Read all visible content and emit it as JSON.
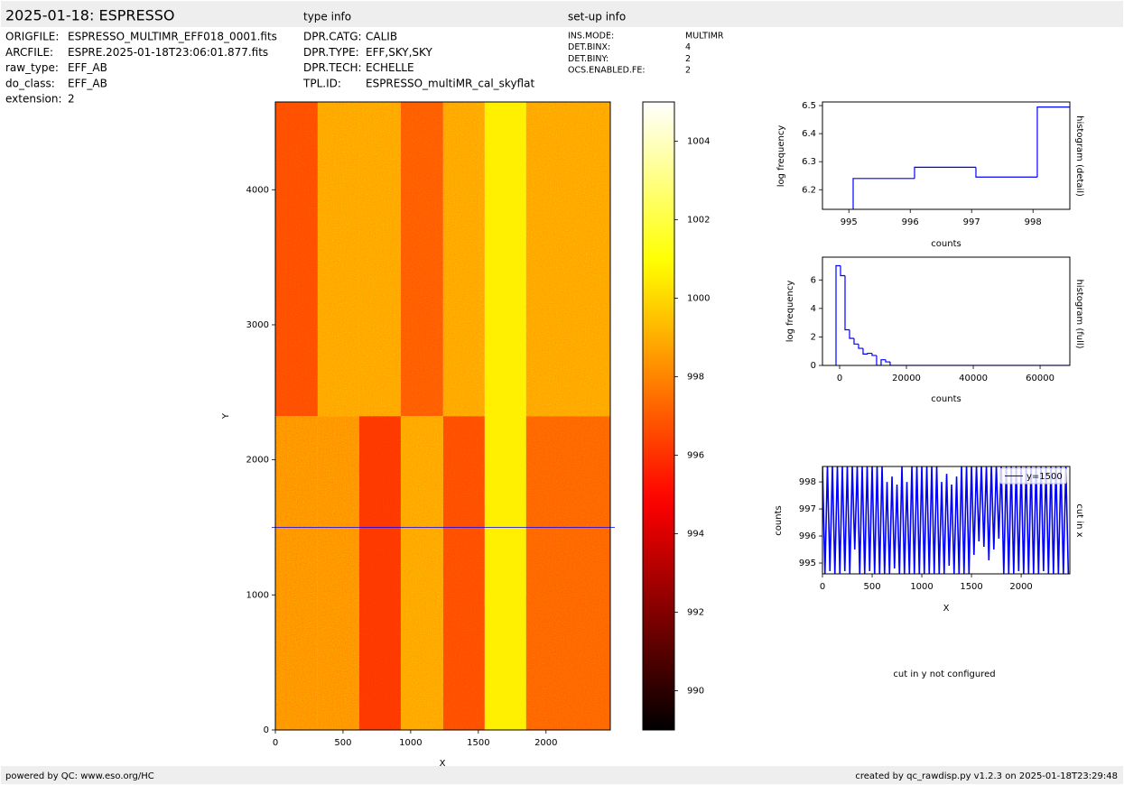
{
  "header": {
    "title": "2025-01-18: ESPRESSO",
    "type_info_title": "type info",
    "setup_info_title": "set-up info"
  },
  "file_info": [
    [
      "ORIGFILE:",
      "ESPRESSO_MULTIMR_EFF018_0001.fits"
    ],
    [
      "ARCFILE:",
      "ESPRE.2025-01-18T23:06:01.877.fits"
    ],
    [
      "raw_type:",
      "EFF_AB"
    ],
    [
      "do_class:",
      "EFF_AB"
    ],
    [
      "extension:",
      "2"
    ]
  ],
  "type_info": [
    [
      "DPR.CATG:",
      "CALIB"
    ],
    [
      "DPR.TYPE:",
      "EFF,SKY,SKY"
    ],
    [
      "DPR.TECH:",
      "ECHELLE"
    ],
    [
      "TPL.ID:",
      "ESPRESSO_multiMR_cal_skyflat"
    ]
  ],
  "setup_info": [
    [
      "INS.MODE:",
      "MULTIMR"
    ],
    [
      "DET.BINX:",
      "4"
    ],
    [
      "DET.BINY:",
      "2"
    ],
    [
      "OCS.ENABLED.FE:",
      "2"
    ]
  ],
  "note": "cut in y not configured",
  "footer": {
    "left": "powered by QC: www.eso.org/HC",
    "right": "created by qc_rawdisp.py v1.2.3 on 2025-01-18T23:29:48"
  },
  "chart_data": [
    {
      "type": "heatmap",
      "colormap": "hot",
      "xlabel": "X",
      "ylabel": "Y",
      "xlim": [
        0,
        2475
      ],
      "ylim": [
        0,
        4650
      ],
      "xticks": [
        0,
        500,
        1000,
        1500,
        2000
      ],
      "yticks": [
        0,
        1000,
        2000,
        3000,
        4000
      ],
      "x_edges": [
        0,
        313,
        620,
        927,
        1240,
        1547,
        1853,
        2475
      ],
      "y_edges": [
        0,
        2324,
        4650
      ],
      "values": [
        [
          998,
          998,
          996,
          998.5,
          996.5,
          1000.5,
          997
        ],
        [
          996.5,
          998.5,
          998.5,
          996.8,
          998.5,
          1000.5,
          998.5
        ]
      ],
      "vlim": [
        989,
        1005
      ],
      "hline": 1500,
      "hline_color": "#0000ff"
    },
    {
      "type": "colorbar",
      "colormap": "hot",
      "ylim": [
        989,
        1005
      ],
      "yticks": [
        990,
        992,
        994,
        996,
        998,
        1000,
        1002,
        1004
      ]
    },
    {
      "type": "histogram",
      "xlabel": "counts",
      "ylabel": "log frequency",
      "side_label": "histogram (detail)",
      "xlim": [
        994.57,
        998.6
      ],
      "ylim": [
        6.13,
        6.513
      ],
      "xticks": [
        995,
        996,
        997,
        998
      ],
      "yticks": [
        6.2,
        6.3,
        6.4,
        6.5
      ],
      "bins": [
        995.07,
        996.07,
        997.07,
        998.07,
        999.07
      ],
      "counts": [
        6.24,
        6.28,
        6.245,
        6.495
      ],
      "color": "#0000ff"
    },
    {
      "type": "histogram",
      "xlabel": "counts",
      "ylabel": "log frequency",
      "side_label": "histogram (full)",
      "xlim": [
        -5135,
        68900
      ],
      "ylim": [
        0,
        7.6
      ],
      "xticks": [
        0,
        20000,
        40000,
        60000
      ],
      "yticks": [
        0,
        2,
        4,
        6
      ],
      "bins": [
        -1080,
        270,
        1620,
        2970,
        4320,
        5670,
        7020,
        8370,
        9720,
        11070,
        12420,
        13770,
        15120
      ],
      "counts": [
        7.0,
        6.3,
        2.5,
        1.9,
        1.5,
        1.2,
        0.8,
        0.85,
        0.7,
        0,
        0.4,
        0.25
      ],
      "color": "#0000ff"
    },
    {
      "type": "line",
      "xlabel": "X",
      "ylabel": "counts",
      "side_label": "cut in x",
      "legend": "upper right",
      "xlim": [
        0,
        2490
      ],
      "ylim": [
        994.6,
        998.57
      ],
      "xticks": [
        0,
        500,
        1000,
        1500,
        2000
      ],
      "yticks": [
        995,
        996,
        997,
        998
      ],
      "x": [
        0,
        25,
        50,
        75,
        100,
        125,
        150,
        175,
        200,
        225,
        250,
        275,
        300,
        325,
        350,
        375,
        400,
        425,
        450,
        475,
        500,
        525,
        550,
        575,
        600,
        625,
        650,
        675,
        700,
        725,
        750,
        775,
        800,
        825,
        850,
        875,
        900,
        925,
        950,
        975,
        1000,
        1025,
        1050,
        1075,
        1100,
        1125,
        1150,
        1175,
        1200,
        1225,
        1250,
        1275,
        1300,
        1325,
        1350,
        1375,
        1400,
        1425,
        1450,
        1475,
        1500,
        1525,
        1550,
        1575,
        1600,
        1625,
        1650,
        1675,
        1700,
        1725,
        1750,
        1775,
        1800,
        1825,
        1850,
        1875,
        1900,
        1925,
        1950,
        1975,
        2000,
        2025,
        2050,
        2075,
        2100,
        2125,
        2150,
        2175,
        2200,
        2225,
        2250,
        2275,
        2300,
        2325,
        2350,
        2375,
        2400,
        2425,
        2450,
        2475
      ],
      "series": [
        {
          "name": "y=1500",
          "color": "#0000ff",
          "values": [
            998.6,
            994.6,
            998.6,
            994.7,
            998.6,
            994.6,
            998.6,
            994.6,
            998.6,
            994.7,
            998.6,
            994.6,
            998.6,
            995.5,
            998.6,
            994.6,
            998.6,
            994.6,
            998.6,
            994.7,
            998.6,
            994.6,
            998.6,
            994.6,
            998.6,
            994.6,
            998.0,
            994.6,
            998.2,
            994.8,
            997.9,
            994.6,
            998.6,
            994.6,
            998.0,
            994.6,
            998.6,
            994.6,
            998.6,
            994.6,
            998.6,
            994.6,
            998.6,
            994.6,
            998.6,
            994.6,
            998.6,
            994.6,
            998.0,
            994.6,
            998.3,
            994.9,
            997.9,
            994.6,
            998.2,
            994.6,
            998.6,
            994.6,
            998.6,
            994.6,
            998.6,
            995.3,
            998.6,
            995.8,
            998.6,
            995.6,
            998.6,
            995.1,
            998.6,
            995.5,
            998.6,
            995.9,
            998.6,
            994.6,
            998.6,
            994.6,
            998.6,
            994.6,
            998.6,
            994.7,
            998.6,
            994.6,
            998.6,
            994.6,
            998.6,
            994.6,
            998.6,
            994.6,
            998.6,
            994.7,
            998.6,
            994.6,
            998.6,
            994.6,
            998.6,
            994.6,
            998.6,
            994.6,
            998.6,
            994.6
          ]
        }
      ]
    }
  ]
}
